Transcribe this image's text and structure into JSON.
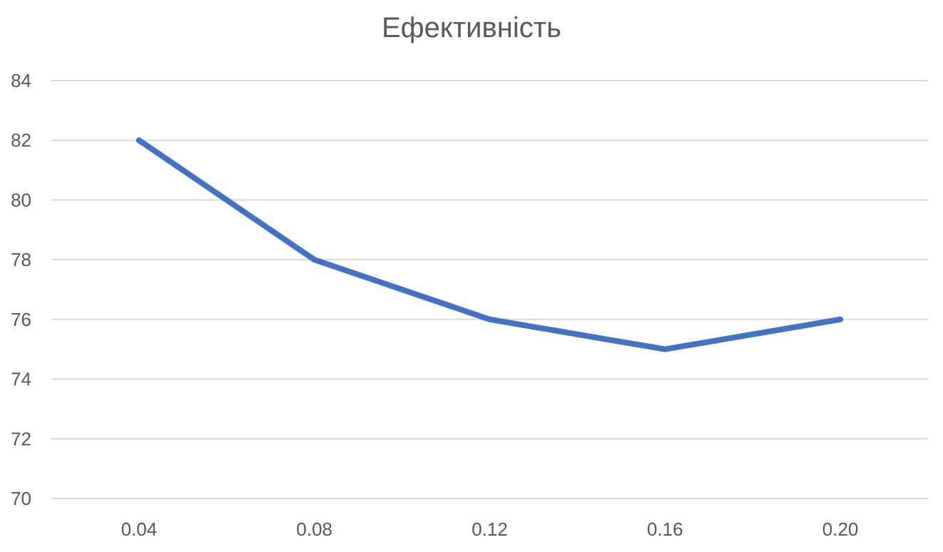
{
  "chart_data": {
    "type": "line",
    "title": "Ефективність",
    "xlabel": "",
    "ylabel": "",
    "categories": [
      "0.04",
      "0.08",
      "0.12",
      "0.16",
      "0.20"
    ],
    "series": [
      {
        "values": [
          82,
          78,
          76,
          75,
          76
        ]
      }
    ],
    "ylim": [
      70,
      84
    ],
    "yticks": [
      70,
      72,
      74,
      76,
      78,
      80,
      82,
      84
    ],
    "grid": true,
    "legend": "none",
    "colors": {
      "series": "#4472c4",
      "grid": "#d9d9d9",
      "text": "#595959"
    }
  }
}
